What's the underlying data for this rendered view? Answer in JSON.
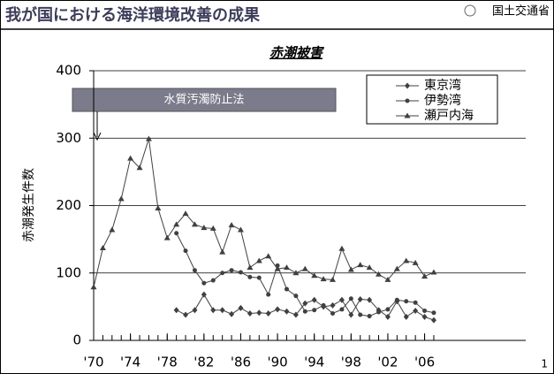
{
  "header": {
    "title": "我が国における海洋環境改善の成果",
    "ministry": "国土交通省",
    "page": "1"
  },
  "chart_data": {
    "type": "line",
    "title": "赤潮被害",
    "y_label": "赤潮発生件数",
    "annotation": "水質汚濁防止法",
    "x": [
      1970,
      1971,
      1972,
      1973,
      1974,
      1975,
      1976,
      1977,
      1978,
      1979,
      1980,
      1981,
      1982,
      1983,
      1984,
      1985,
      1986,
      1987,
      1988,
      1989,
      1990,
      1991,
      1992,
      1993,
      1994,
      1995,
      1996,
      1997,
      1998,
      1999,
      2000,
      2001,
      2002,
      2003,
      2004,
      2005,
      2006,
      2007
    ],
    "series": [
      {
        "name": "東京湾",
        "color": "#404040",
        "marker": "diamond",
        "values": [
          null,
          null,
          null,
          null,
          null,
          null,
          null,
          null,
          null,
          45,
          38,
          45,
          68,
          45,
          45,
          39,
          48,
          40,
          41,
          40,
          46,
          43,
          38,
          55,
          60,
          50,
          52,
          60,
          38,
          61,
          60,
          45,
          35,
          58,
          35,
          44,
          35,
          30
        ]
      },
      {
        "name": "伊勢湾",
        "color": "#404040",
        "marker": "circle",
        "values": [
          null,
          null,
          null,
          null,
          null,
          null,
          null,
          null,
          null,
          159,
          133,
          104,
          85,
          89,
          100,
          104,
          101,
          94,
          93,
          68,
          111,
          76,
          66,
          43,
          45,
          52,
          40,
          46,
          62,
          38,
          36,
          42,
          46,
          60,
          58,
          56,
          44,
          41
        ]
      },
      {
        "name": "瀬戸内海",
        "color": "#404040",
        "marker": "triangle",
        "values": [
          79,
          137,
          164,
          210,
          270,
          256,
          299,
          196,
          152,
          172,
          188,
          172,
          167,
          166,
          131,
          171,
          164,
          108,
          118,
          125,
          106,
          108,
          100,
          106,
          96,
          91,
          90,
          136,
          105,
          112,
          108,
          98,
          90,
          106,
          118,
          115,
          95,
          101
        ]
      }
    ],
    "xlim": [
      1970,
      2017
    ],
    "xticks": [
      {
        "value": 1970,
        "label": "'70"
      },
      {
        "value": 1974,
        "label": "'74"
      },
      {
        "value": 1978,
        "label": "'78"
      },
      {
        "value": 1982,
        "label": "'82"
      },
      {
        "value": 1986,
        "label": "'86"
      },
      {
        "value": 1990,
        "label": "'90"
      },
      {
        "value": 1994,
        "label": "'94"
      },
      {
        "value": 1998,
        "label": "'98"
      },
      {
        "value": 2002,
        "label": "'02"
      },
      {
        "value": 2006,
        "label": "'06"
      }
    ],
    "ylim": [
      0,
      400
    ],
    "yticks": [
      0,
      100,
      200,
      300,
      400
    ],
    "grid": true,
    "legend": "top-right"
  }
}
